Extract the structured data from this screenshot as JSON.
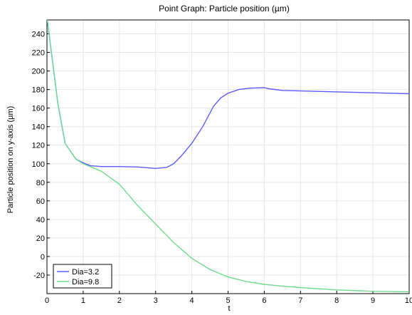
{
  "chart_data": {
    "type": "line",
    "title": "Point Graph: Particle position (µm)",
    "xlabel": "t",
    "ylabel": "Particle position on y-axis (µm)",
    "xlim": [
      0,
      10
    ],
    "ylim": [
      -40,
      255
    ],
    "xticks": [
      0,
      1,
      2,
      3,
      4,
      5,
      6,
      7,
      8,
      9,
      10
    ],
    "yticks": [
      -20,
      0,
      20,
      40,
      60,
      80,
      100,
      120,
      140,
      160,
      180,
      200,
      220,
      240
    ],
    "grid": true,
    "legend_position": "bottom-left",
    "series": [
      {
        "name": "Dia=3.2",
        "color": "#5b5bff",
        "x": [
          0,
          0.3,
          0.5,
          0.8,
          1.0,
          1.2,
          1.5,
          2.0,
          2.5,
          3.0,
          3.3,
          3.5,
          3.7,
          4.0,
          4.3,
          4.6,
          4.8,
          5.0,
          5.3,
          5.6,
          6.0,
          6.1,
          6.5,
          7,
          8,
          9,
          10
        ],
        "y": [
          258,
          165,
          122,
          105,
          101,
          98,
          97,
          97,
          96.5,
          95,
          96,
          100,
          108,
          122,
          140,
          162,
          171,
          176,
          180,
          181.5,
          182,
          181,
          179,
          178.5,
          177.5,
          176.5,
          175.5
        ]
      },
      {
        "name": "Dia=9.8",
        "color": "#6fdc8c",
        "x": [
          0,
          0.3,
          0.5,
          0.8,
          1.0,
          1.5,
          2.0,
          2.5,
          3.0,
          3.5,
          4.0,
          4.5,
          5.0,
          5.5,
          6.0,
          6.5,
          7.0,
          8.0,
          9.0,
          10.0
        ],
        "y": [
          258,
          165,
          122,
          105,
          100,
          92,
          78,
          55,
          35,
          15,
          -2,
          -14,
          -22,
          -27,
          -30,
          -32,
          -33.5,
          -36,
          -37.5,
          -38
        ]
      }
    ]
  }
}
